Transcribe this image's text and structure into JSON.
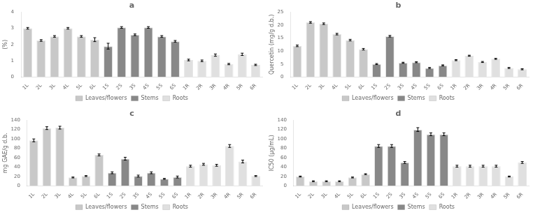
{
  "chart_data": [
    {
      "type": "bar",
      "title": "a",
      "ylabel": "(%)",
      "categories": [
        "1L",
        "2L",
        "3L",
        "4L",
        "5L",
        "6L",
        "1S",
        "2S",
        "3S",
        "4S",
        "5S",
        "6S",
        "1R",
        "2R",
        "3R",
        "4R",
        "5R",
        "6R"
      ],
      "series": [
        {
          "name": "Leaves/flowers",
          "color": "#c8c8c8",
          "values": [
            3.0,
            2.25,
            2.5,
            3.0,
            2.5,
            2.3,
            null,
            null,
            null,
            null,
            null,
            null,
            null,
            null,
            null,
            null,
            null,
            null
          ],
          "errors": [
            0.05,
            0.05,
            0.05,
            0.05,
            0.05,
            0.12,
            null,
            null,
            null,
            null,
            null,
            null,
            null,
            null,
            null,
            null,
            null,
            null
          ]
        },
        {
          "name": "Stems",
          "color": "#888888",
          "values": [
            null,
            null,
            null,
            null,
            null,
            null,
            1.9,
            3.05,
            2.6,
            3.05,
            2.5,
            2.2,
            null,
            null,
            null,
            null,
            null,
            null
          ],
          "errors": [
            null,
            null,
            null,
            null,
            null,
            null,
            0.18,
            0.05,
            0.05,
            0.05,
            0.05,
            0.05,
            null,
            null,
            null,
            null,
            null,
            null
          ]
        },
        {
          "name": "Roots",
          "color": "#e0e0e0",
          "values": [
            null,
            null,
            null,
            null,
            null,
            null,
            null,
            null,
            null,
            null,
            null,
            null,
            1.05,
            1.0,
            1.35,
            0.8,
            1.4,
            0.75
          ],
          "errors": [
            null,
            null,
            null,
            null,
            null,
            null,
            null,
            null,
            null,
            null,
            null,
            null,
            0.05,
            0.05,
            0.07,
            0.04,
            0.07,
            0.04
          ]
        }
      ],
      "ylim": [
        0,
        4
      ],
      "yticks": [
        0,
        1,
        2,
        3,
        4
      ],
      "grid": false,
      "legend": "bottom"
    },
    {
      "type": "bar",
      "title": "b",
      "ylabel": "Quercetin (mg/g d.b.)",
      "categories": [
        "1L",
        "2L",
        "3L",
        "4L",
        "5L",
        "6L",
        "1S",
        "2S",
        "3S",
        "4S",
        "5S",
        "6S",
        "1R",
        "2R",
        "3R",
        "4R",
        "5R",
        "6R"
      ],
      "series": [
        {
          "name": "Leaves/flowers",
          "color": "#c8c8c8",
          "values": [
            12.0,
            21.0,
            20.5,
            16.5,
            14.2,
            10.7,
            null,
            null,
            null,
            null,
            null,
            null,
            null,
            null,
            null,
            null,
            null,
            null
          ],
          "errors": [
            0.3,
            0.3,
            0.3,
            0.3,
            0.3,
            0.3,
            null,
            null,
            null,
            null,
            null,
            null,
            null,
            null,
            null,
            null,
            null,
            null
          ]
        },
        {
          "name": "Stems",
          "color": "#888888",
          "values": [
            null,
            null,
            null,
            null,
            null,
            null,
            5.0,
            15.7,
            5.5,
            5.7,
            3.5,
            4.5,
            null,
            null,
            null,
            null,
            null,
            null
          ],
          "errors": [
            null,
            null,
            null,
            null,
            null,
            null,
            0.2,
            0.3,
            0.2,
            0.2,
            0.2,
            0.2,
            null,
            null,
            null,
            null,
            null,
            null
          ]
        },
        {
          "name": "Roots",
          "color": "#e0e0e0",
          "values": [
            null,
            null,
            null,
            null,
            null,
            null,
            null,
            null,
            null,
            null,
            null,
            null,
            6.5,
            8.2,
            5.8,
            7.0,
            3.5,
            3.0
          ],
          "errors": [
            null,
            null,
            null,
            null,
            null,
            null,
            null,
            null,
            null,
            null,
            null,
            null,
            0.2,
            0.2,
            0.2,
            0.2,
            0.2,
            0.2
          ]
        }
      ],
      "ylim": [
        0,
        25
      ],
      "yticks": [
        0,
        5,
        10,
        15,
        20,
        25
      ],
      "grid": false,
      "legend": "bottom"
    },
    {
      "type": "bar",
      "title": "c",
      "ylabel": "mg GAE/g d.b.",
      "categories": [
        "1L",
        "2L",
        "3L",
        "4L",
        "5L",
        "6L",
        "1S",
        "2S",
        "3S",
        "4S",
        "5S",
        "6S",
        "1R",
        "2R",
        "3R",
        "4R",
        "5R",
        "6R"
      ],
      "series": [
        {
          "name": "Leaves/flowers",
          "color": "#c8c8c8",
          "values": [
            97,
            123,
            124,
            18,
            21,
            66,
            null,
            null,
            null,
            null,
            null,
            null,
            null,
            null,
            null,
            null,
            null,
            null
          ],
          "errors": [
            3,
            3,
            3,
            1,
            1,
            2,
            null,
            null,
            null,
            null,
            null,
            null,
            null,
            null,
            null,
            null,
            null,
            null
          ]
        },
        {
          "name": "Stems",
          "color": "#888888",
          "values": [
            null,
            null,
            null,
            null,
            null,
            null,
            28,
            58,
            21,
            28,
            15,
            19,
            null,
            null,
            null,
            null,
            null,
            null
          ],
          "errors": [
            null,
            null,
            null,
            null,
            null,
            null,
            2,
            3,
            2,
            2,
            1,
            2,
            null,
            null,
            null,
            null,
            null,
            null
          ]
        },
        {
          "name": "Roots",
          "color": "#e0e0e0",
          "values": [
            null,
            null,
            null,
            null,
            null,
            null,
            null,
            null,
            null,
            null,
            null,
            null,
            42,
            46,
            44,
            85,
            52,
            21
          ],
          "errors": [
            null,
            null,
            null,
            null,
            null,
            null,
            null,
            null,
            null,
            null,
            null,
            null,
            2,
            2,
            2,
            3,
            3,
            1
          ]
        }
      ],
      "ylim": [
        0,
        140
      ],
      "yticks": [
        0,
        20,
        40,
        60,
        80,
        100,
        120,
        140
      ],
      "grid": false,
      "legend": "bottom"
    },
    {
      "type": "bar",
      "title": "d",
      "ylabel": "IC50 (μg/mL)",
      "categories": [
        "1L",
        "2L",
        "3L",
        "4L",
        "5L",
        "6L",
        "1S",
        "2S",
        "3S",
        "4S",
        "5S",
        "6S",
        "1R",
        "2R",
        "3R",
        "4R",
        "5R",
        "6R"
      ],
      "series": [
        {
          "name": "Leaves/flowers",
          "color": "#c8c8c8",
          "values": [
            20,
            10,
            10,
            10,
            18,
            25,
            null,
            null,
            null,
            null,
            null,
            null,
            null,
            null,
            null,
            null,
            null,
            null
          ],
          "errors": [
            1,
            1,
            1,
            1,
            1,
            1,
            null,
            null,
            null,
            null,
            null,
            null,
            null,
            null,
            null,
            null,
            null,
            null
          ]
        },
        {
          "name": "Stems",
          "color": "#888888",
          "values": [
            null,
            null,
            null,
            null,
            null,
            null,
            85,
            85,
            50,
            120,
            110,
            110,
            null,
            null,
            null,
            null,
            null,
            null
          ],
          "errors": [
            null,
            null,
            null,
            null,
            null,
            null,
            3,
            3,
            2,
            4,
            3,
            3,
            null,
            null,
            null,
            null,
            null,
            null
          ]
        },
        {
          "name": "Roots",
          "color": "#e0e0e0",
          "values": [
            null,
            null,
            null,
            null,
            null,
            null,
            null,
            null,
            null,
            null,
            null,
            null,
            42,
            42,
            42,
            42,
            20,
            50
          ],
          "errors": [
            null,
            null,
            null,
            null,
            null,
            null,
            null,
            null,
            null,
            null,
            null,
            null,
            2,
            2,
            2,
            2,
            1,
            2
          ]
        }
      ],
      "ylim": [
        0,
        140
      ],
      "yticks": [
        0,
        20,
        40,
        60,
        80,
        100,
        120,
        140
      ],
      "grid": false,
      "legend": "bottom"
    }
  ]
}
